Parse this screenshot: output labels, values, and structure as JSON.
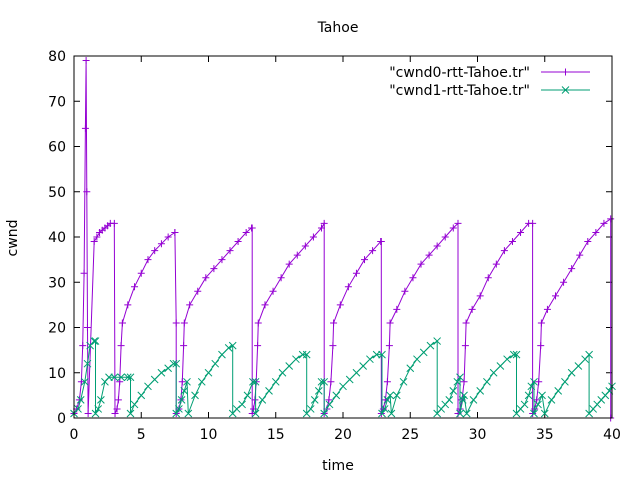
{
  "chart_data": {
    "type": "line",
    "title": "Tahoe",
    "xlabel": "time",
    "ylabel": "cwnd",
    "xlim": [
      0,
      40
    ],
    "ylim": [
      0,
      80
    ],
    "x_ticks": [
      0,
      5,
      10,
      15,
      20,
      25,
      30,
      35,
      40
    ],
    "y_ticks": [
      0,
      10,
      20,
      30,
      40,
      50,
      60,
      70,
      80
    ],
    "grid": false,
    "legend_position": "top-right",
    "series": [
      {
        "name": "\"cwnd0-rtt-Tahoe.tr\"",
        "color": "#9400d3",
        "marker": "plus",
        "x": [
          0.0,
          0.2,
          0.4,
          0.55,
          0.65,
          0.75,
          0.85,
          0.9,
          0.95,
          1.0,
          1.05,
          1.5,
          1.7,
          1.9,
          2.1,
          2.3,
          2.5,
          2.7,
          3.0,
          3.05,
          3.05,
          3.2,
          3.3,
          3.4,
          3.5,
          3.6,
          3.6,
          4.0,
          4.5,
          5.0,
          5.5,
          6.0,
          6.5,
          7.0,
          7.5,
          7.5,
          7.6,
          7.6,
          7.8,
          7.95,
          8.05,
          8.15,
          8.2,
          8.6,
          9.2,
          9.8,
          10.4,
          11.0,
          11.6,
          12.2,
          12.8,
          13.2,
          13.25,
          13.25,
          13.35,
          13.45,
          13.55,
          13.65,
          13.7,
          14.2,
          14.8,
          15.4,
          16.0,
          16.6,
          17.2,
          17.8,
          18.4,
          18.6,
          18.6,
          18.8,
          18.95,
          19.1,
          19.25,
          19.3,
          19.8,
          20.4,
          21.0,
          21.6,
          22.2,
          22.8,
          22.85,
          22.85,
          23.0,
          23.15,
          23.3,
          23.45,
          23.5,
          24.0,
          24.6,
          25.2,
          25.8,
          26.4,
          27.0,
          27.6,
          28.2,
          28.55,
          28.55,
          28.7,
          28.85,
          29.0,
          29.1,
          29.15,
          29.6,
          30.2,
          30.8,
          31.4,
          32.0,
          32.6,
          33.2,
          33.8,
          34.1,
          34.1,
          34.25,
          34.4,
          34.55,
          34.7,
          34.75,
          35.2,
          35.8,
          36.4,
          37.0,
          37.6,
          38.2,
          38.8,
          39.4,
          39.9,
          39.9
        ],
        "y": [
          1,
          2,
          4,
          8,
          16,
          32,
          64,
          79,
          50,
          20,
          1,
          39,
          40,
          41,
          41.5,
          42,
          42.5,
          43,
          43,
          1,
          1,
          2,
          4,
          8,
          16,
          21,
          21,
          25,
          29,
          32,
          35,
          37,
          38.5,
          40,
          41,
          41,
          21,
          1,
          2,
          4,
          8,
          16,
          21,
          25,
          28,
          31,
          33,
          35,
          37,
          39,
          41,
          42,
          42,
          1,
          2,
          4,
          8,
          16,
          21,
          25,
          28,
          31,
          34,
          36,
          38,
          40,
          42,
          43,
          1,
          2,
          4,
          8,
          16,
          21,
          25,
          29,
          32,
          35,
          37,
          39,
          39,
          1,
          2,
          4,
          8,
          16,
          21,
          24,
          28,
          31,
          34,
          36,
          38,
          40,
          42,
          43,
          1,
          2,
          4,
          8,
          16,
          21,
          24,
          27,
          31,
          34,
          37,
          39,
          41,
          43,
          43,
          1,
          2,
          4,
          8,
          16,
          21,
          24,
          27,
          30,
          33,
          36,
          39,
          41,
          43,
          44,
          0
        ]
      },
      {
        "name": "\"cwnd1-rtt-Tahoe.tr\"",
        "color": "#009e73",
        "marker": "cross",
        "x": [
          0.0,
          0.3,
          0.5,
          0.8,
          1.0,
          1.2,
          1.5,
          1.6,
          1.6,
          1.8,
          2.0,
          2.3,
          2.6,
          3.0,
          3.5,
          4.0,
          4.2,
          4.2,
          4.5,
          5.0,
          5.5,
          6.0,
          6.5,
          7.0,
          7.4,
          7.6,
          7.6,
          7.8,
          8.0,
          8.2,
          8.4,
          8.5,
          9.0,
          9.5,
          10.0,
          10.5,
          11.0,
          11.5,
          11.8,
          11.8,
          12.1,
          12.5,
          12.9,
          13.3,
          13.5,
          13.5,
          14.0,
          14.5,
          15.0,
          15.5,
          16.0,
          16.5,
          17.0,
          17.3,
          17.3,
          17.6,
          17.9,
          18.2,
          18.4,
          18.6,
          18.6,
          19.0,
          19.5,
          20.0,
          20.5,
          21.0,
          21.5,
          22.0,
          22.5,
          22.9,
          22.9,
          23.1,
          23.3,
          23.5,
          23.6,
          24.0,
          24.5,
          25.0,
          25.5,
          26.0,
          26.5,
          27.0,
          27.0,
          27.3,
          27.6,
          27.9,
          28.2,
          28.5,
          28.7,
          28.7,
          28.9,
          29.0,
          29.2,
          29.7,
          30.2,
          30.7,
          31.2,
          31.7,
          32.2,
          32.7,
          32.9,
          32.9,
          33.2,
          33.5,
          33.8,
          34.0,
          34.2,
          34.2,
          34.5,
          34.8,
          35.0,
          35.5,
          36.0,
          36.5,
          37.0,
          37.5,
          38.0,
          38.3,
          38.3,
          38.6,
          38.9,
          39.2,
          39.5,
          39.8,
          40.0
        ],
        "y": [
          1,
          2,
          4,
          8,
          12,
          16,
          17,
          17,
          1,
          2,
          4,
          8,
          9,
          9,
          9,
          9,
          9,
          1,
          3,
          5,
          7,
          8.5,
          10,
          11,
          12,
          12,
          1,
          2,
          4,
          6,
          8,
          1,
          5,
          8,
          10,
          12,
          14,
          15.5,
          16,
          1,
          2,
          3,
          5,
          8,
          8,
          1,
          4,
          6,
          8,
          10,
          11.5,
          13,
          14,
          14,
          1,
          2,
          4,
          6,
          8,
          8,
          1,
          3,
          5,
          7,
          8.5,
          10,
          11.5,
          13,
          14,
          14,
          1,
          2,
          4,
          5,
          1,
          5,
          8,
          11,
          13,
          14.5,
          16,
          17,
          1,
          2,
          3,
          4,
          6,
          8,
          9,
          1,
          4,
          5,
          1,
          4,
          6,
          8,
          10,
          11.5,
          13,
          14,
          14,
          1,
          2,
          3,
          5,
          7,
          8,
          1,
          3,
          5,
          1,
          4,
          6,
          8,
          10,
          11.5,
          13,
          14,
          1,
          2,
          3,
          4,
          5,
          6,
          7
        ]
      }
    ]
  }
}
